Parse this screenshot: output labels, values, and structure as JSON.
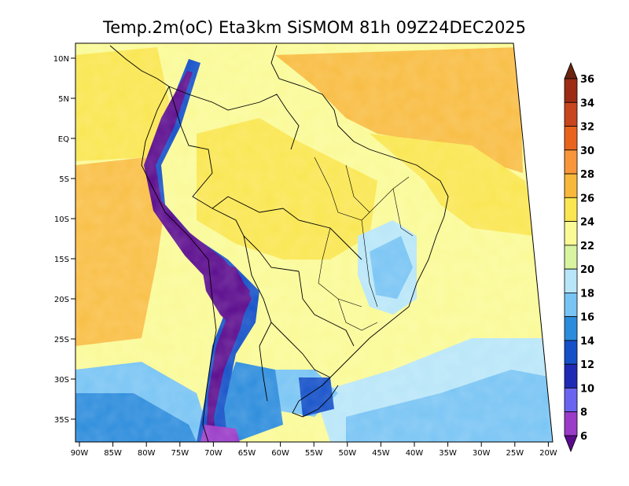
{
  "title": "Temp.2m(oC) Eta3km SiSMOM 81h 09Z24DEC2025",
  "lat_labels": [
    "10N",
    "5N",
    "EQ",
    "5S",
    "10S",
    "15S",
    "20S",
    "25S",
    "30S",
    "35S"
  ],
  "lon_labels": [
    "90W",
    "85W",
    "80W",
    "75W",
    "70W",
    "65W",
    "60W",
    "55W",
    "50W",
    "45W",
    "40W",
    "35W",
    "30W",
    "25W",
    "20W"
  ],
  "colorbar": {
    "labels": [
      "6",
      "8",
      "10",
      "12",
      "14",
      "16",
      "18",
      "20",
      "22",
      "24",
      "26",
      "28",
      "30",
      "32",
      "34",
      "36"
    ],
    "colors": [
      "#5a0a8c",
      "#9a3cc8",
      "#6a64f0",
      "#1e2ab4",
      "#1450c8",
      "#2c8cdc",
      "#78c4f4",
      "#b8e6f8",
      "#d8f4a0",
      "#fafa96",
      "#fae650",
      "#f8b83c",
      "#f8963c",
      "#e8641e",
      "#c8461e",
      "#9c2c14",
      "#6a2410"
    ]
  },
  "palette": {
    "warm_ocean": "#f8b83c",
    "mid": "#fae650",
    "light": "#fafa96",
    "cool": "#78c4f4",
    "andes": "#5a0a8c",
    "boundary": "#000000"
  }
}
